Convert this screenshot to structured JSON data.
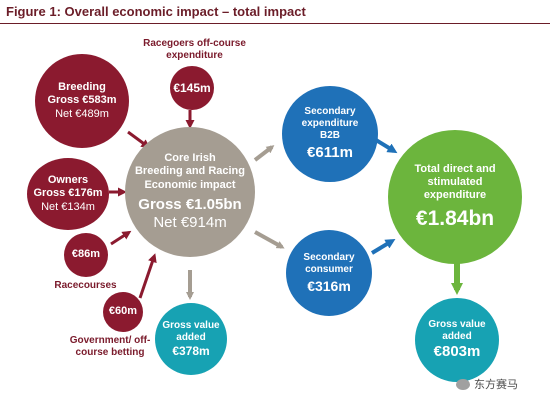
{
  "figure": {
    "title": "Figure 1: Overall economic impact – total impact"
  },
  "labels": {
    "racegoers": "Racegoers off-course expenditure",
    "racecourses": "Racecourses",
    "government": "Government/ off-course betting"
  },
  "nodes": {
    "breeding": {
      "line1": "Breeding",
      "line2": "Gross €583m",
      "line3": "Net €489m"
    },
    "racegoers": {
      "value": "€145m"
    },
    "owners": {
      "line1": "Owners",
      "line2": "Gross €176m",
      "line3": "Net €134m"
    },
    "racecourses": {
      "value": "€86m"
    },
    "government": {
      "value": "€60m"
    },
    "core": {
      "line1": "Core Irish",
      "line2": "Breeding and Racing",
      "line3": "Economic impact",
      "gross": "Gross €1.05bn",
      "net": "Net €914m"
    },
    "gva_core": {
      "line1": "Gross value",
      "line2": "added",
      "value": "€378m"
    },
    "b2b": {
      "line1": "Secondary",
      "line2": "expenditure",
      "line3": "B2B",
      "value": "€611m"
    },
    "consumer": {
      "line1": "Secondary",
      "line2": "consumer",
      "value": "€316m"
    },
    "total": {
      "line1": "Total direct and",
      "line2": "stimulated",
      "line3": "expenditure",
      "value": "€1.84bn"
    },
    "gva_total": {
      "line1": "Gross value",
      "line2": "added",
      "value": "€803m"
    }
  },
  "watermark": {
    "text": "东方赛马"
  },
  "colors": {
    "maroon": "#8b1a2f",
    "grey": "#a59d92",
    "blue": "#1f71b8",
    "teal": "#17a2b3",
    "green": "#6cb53d",
    "arrow_grey": "#a59d92",
    "arrow_blue": "#1f71b8",
    "arrow_green": "#6cb53d"
  }
}
